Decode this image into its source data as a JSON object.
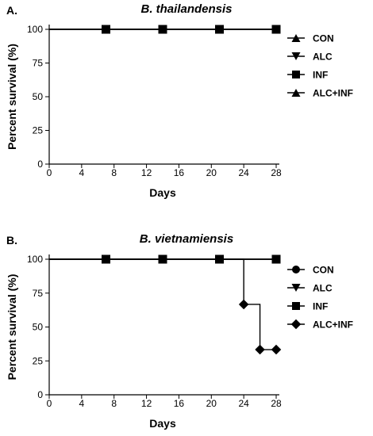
{
  "chart_data": [
    {
      "type": "line",
      "panel": "A.",
      "title": "B. thailandensis",
      "xlabel": "Days",
      "ylabel": "Percent survival (%)",
      "xlim": [
        0,
        28
      ],
      "ylim": [
        0,
        100
      ],
      "xticks": [
        0,
        4,
        8,
        12,
        16,
        20,
        24,
        28
      ],
      "yticks": [
        0,
        25,
        50,
        75,
        100
      ],
      "legend_position": "right",
      "step": true,
      "series": [
        {
          "name": "CON",
          "marker": "triangle-up",
          "x": [
            0,
            7,
            14,
            21,
            28
          ],
          "y": [
            100,
            100,
            100,
            100,
            100
          ]
        },
        {
          "name": "ALC",
          "marker": "triangle-down",
          "x": [
            0,
            7,
            14,
            21,
            28
          ],
          "y": [
            100,
            100,
            100,
            100,
            100
          ]
        },
        {
          "name": "INF",
          "marker": "square",
          "x": [
            0,
            7,
            14,
            21,
            28
          ],
          "y": [
            100,
            100,
            100,
            100,
            100
          ]
        },
        {
          "name": "ALC+INF",
          "marker": "triangle-up",
          "x": [
            0,
            7,
            14,
            21,
            28
          ],
          "y": [
            100,
            100,
            100,
            100,
            100
          ]
        }
      ],
      "marker_points": {
        "x": [
          7,
          14,
          21,
          28
        ],
        "y": [
          100,
          100,
          100,
          100
        ],
        "marker": "square"
      }
    },
    {
      "type": "line",
      "panel": "B.",
      "title": "B. vietnamiensis",
      "xlabel": "Days",
      "ylabel": "Percent survival (%)",
      "xlim": [
        0,
        28
      ],
      "ylim": [
        0,
        100
      ],
      "xticks": [
        0,
        4,
        8,
        12,
        16,
        20,
        24,
        28
      ],
      "yticks": [
        0,
        25,
        50,
        75,
        100
      ],
      "legend_position": "right",
      "step": true,
      "series": [
        {
          "name": "CON",
          "marker": "circle",
          "x": [
            0,
            7,
            14,
            21,
            28
          ],
          "y": [
            100,
            100,
            100,
            100,
            100
          ]
        },
        {
          "name": "ALC",
          "marker": "triangle-down",
          "x": [
            0,
            7,
            14,
            21,
            28
          ],
          "y": [
            100,
            100,
            100,
            100,
            100
          ]
        },
        {
          "name": "INF",
          "marker": "square",
          "x": [
            0,
            7,
            14,
            21,
            28
          ],
          "y": [
            100,
            100,
            100,
            100,
            100
          ]
        },
        {
          "name": "ALC+INF",
          "marker": "diamond",
          "x": [
            0,
            24,
            26,
            28
          ],
          "y": [
            100,
            66.7,
            33.3,
            33.3
          ]
        }
      ],
      "marker_points": {
        "x": [
          7,
          14,
          21,
          28
        ],
        "y": [
          100,
          100,
          100,
          100
        ],
        "marker": "square"
      },
      "diamond_points": {
        "x": [
          24,
          26,
          28
        ],
        "y": [
          66.7,
          33.3,
          33.3
        ]
      }
    }
  ]
}
